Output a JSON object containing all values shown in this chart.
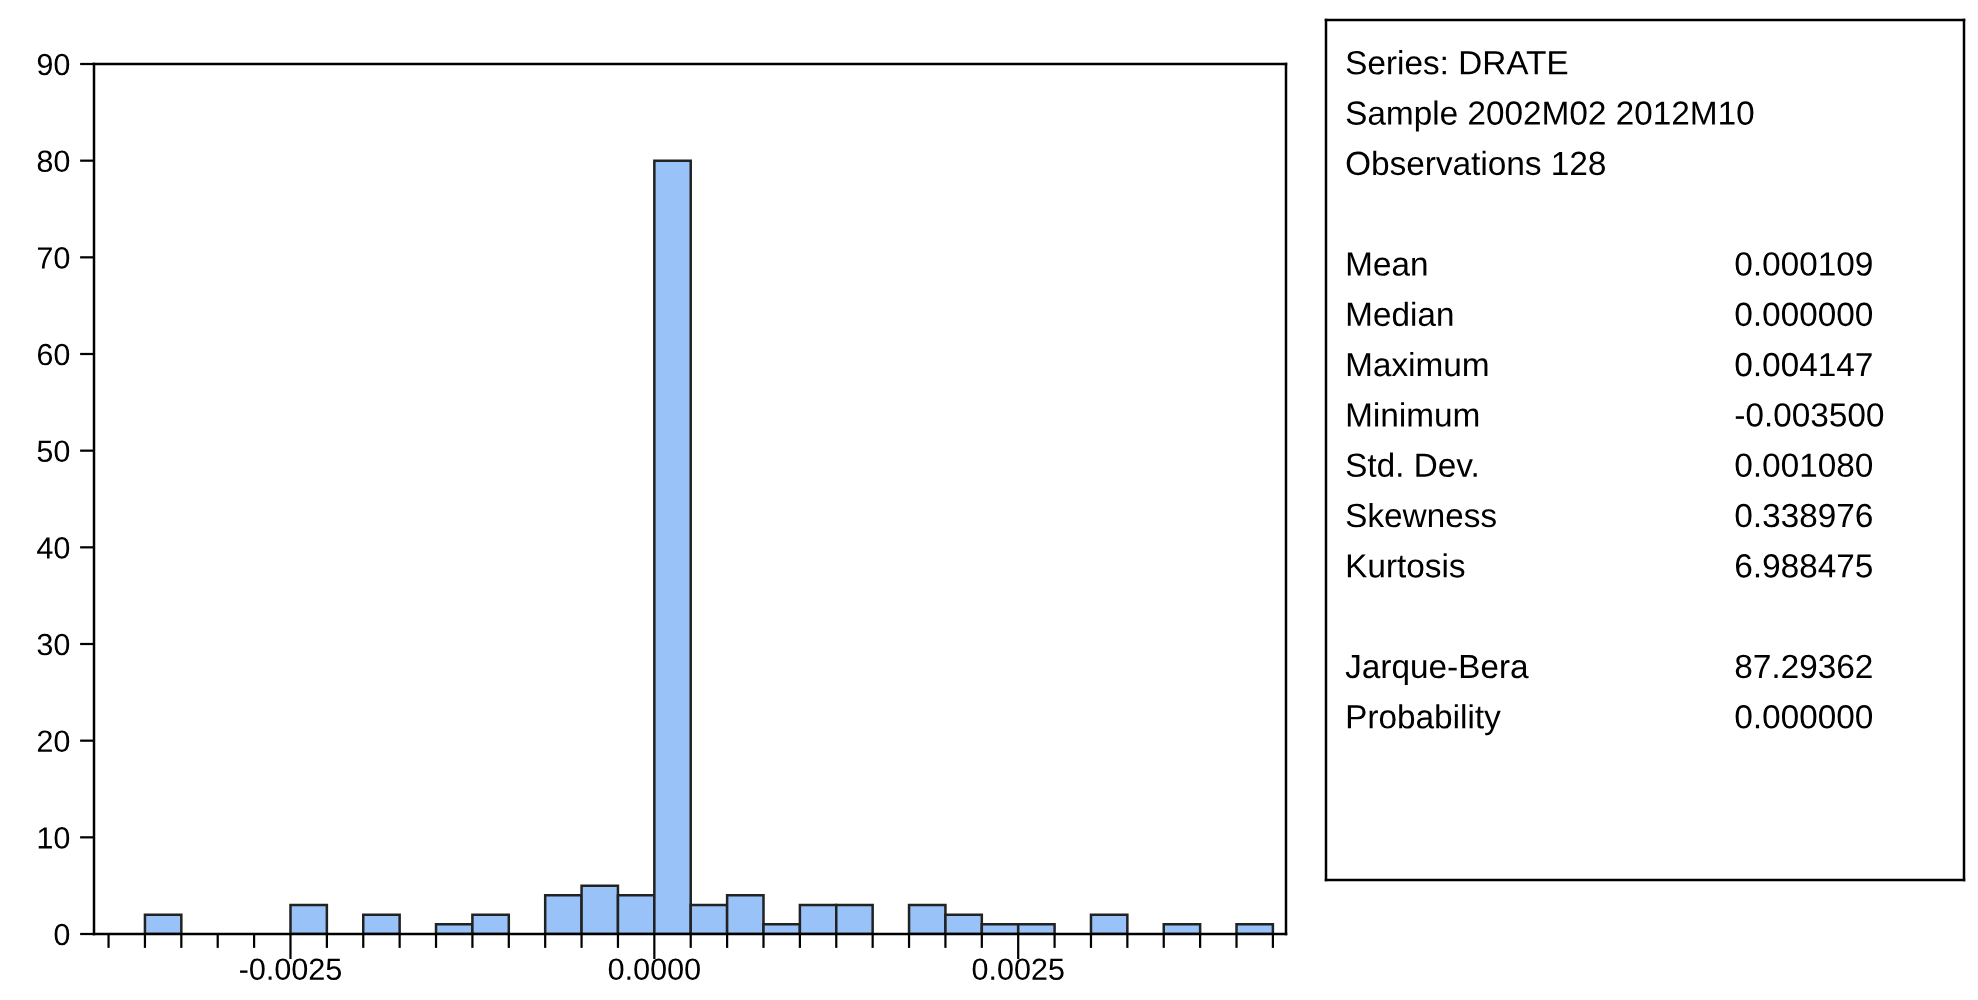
{
  "chart_data": {
    "type": "histogram",
    "bins": [
      -0.0035,
      -0.00325,
      -0.003,
      -0.00275,
      -0.0025,
      -0.00225,
      -0.002,
      -0.00175,
      -0.0015,
      -0.00125,
      -0.001,
      -0.00075,
      -0.0005,
      -0.00025,
      0.0,
      0.00025,
      0.0005,
      0.00075,
      0.001,
      0.00125,
      0.0015,
      0.00175,
      0.002,
      0.00225,
      0.0025,
      0.00275,
      0.003,
      0.00325,
      0.0035,
      0.00375,
      0.004,
      0.00425
    ],
    "values": [
      2,
      0,
      0,
      0,
      3,
      0,
      2,
      0,
      1,
      2,
      0,
      4,
      5,
      4,
      80,
      3,
      4,
      1,
      3,
      3,
      0,
      3,
      2,
      1,
      1,
      0,
      2,
      0,
      1,
      0,
      1
    ],
    "color": "#99c2f8",
    "xlim": [
      -0.00385,
      0.00434
    ],
    "xticks": [
      {
        "value": -0.00375,
        "label": null
      },
      {
        "value": -0.0035,
        "label": null
      },
      {
        "value": -0.00325,
        "label": null
      },
      {
        "value": -0.003,
        "label": null
      },
      {
        "value": -0.00275,
        "label": null
      },
      {
        "value": -0.0025,
        "label": "-0.0025"
      },
      {
        "value": -0.00225,
        "label": null
      },
      {
        "value": -0.002,
        "label": null
      },
      {
        "value": -0.00175,
        "label": null
      },
      {
        "value": -0.0015,
        "label": null
      },
      {
        "value": -0.00125,
        "label": null
      },
      {
        "value": -0.001,
        "label": null
      },
      {
        "value": -0.00075,
        "label": null
      },
      {
        "value": -0.0005,
        "label": null
      },
      {
        "value": -0.00025,
        "label": null
      },
      {
        "value": 0.0,
        "label": "0.0000"
      },
      {
        "value": 0.00025,
        "label": null
      },
      {
        "value": 0.0005,
        "label": null
      },
      {
        "value": 0.00075,
        "label": null
      },
      {
        "value": 0.001,
        "label": null
      },
      {
        "value": 0.00125,
        "label": null
      },
      {
        "value": 0.0015,
        "label": null
      },
      {
        "value": 0.00175,
        "label": null
      },
      {
        "value": 0.002,
        "label": null
      },
      {
        "value": 0.00225,
        "label": null
      },
      {
        "value": 0.0025,
        "label": "0.0025"
      },
      {
        "value": 0.00275,
        "label": null
      },
      {
        "value": 0.003,
        "label": null
      },
      {
        "value": 0.00325,
        "label": null
      },
      {
        "value": 0.0035,
        "label": null
      },
      {
        "value": 0.00375,
        "label": null
      },
      {
        "value": 0.004,
        "label": null
      },
      {
        "value": 0.00425,
        "label": null
      }
    ],
    "ylim": [
      0,
      90
    ],
    "yticks": [
      0,
      10,
      20,
      30,
      40,
      50,
      60,
      70,
      80,
      90
    ],
    "grid": false,
    "annotations": [
      "Series: DRATE\nSample 2002M02 2012M10\nObservations 128",
      "Mean\t0.000109\nMedian\t0.000000\nMaximum\t0.004147\nMinimum\t-0.003500\nStd. Dev.\t0.001080\nSkewness\t0.338976\nKurtosis\t6.988475",
      "Jarque-Bera\t87.29362\nProbability\t0.000000"
    ]
  }
}
